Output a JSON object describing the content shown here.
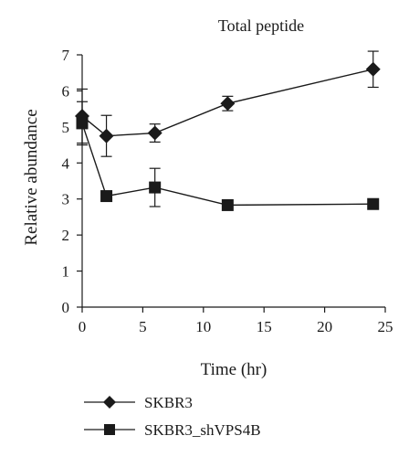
{
  "chart_data": {
    "type": "line",
    "title": "Total peptide",
    "xlabel": "Time (hr)",
    "ylabel": "Relative abundance",
    "xlim": [
      0,
      25
    ],
    "ylim": [
      0,
      7
    ],
    "xticks": [
      "0",
      "5",
      "10",
      "15",
      "20",
      "25"
    ],
    "yticks": [
      "0",
      "1",
      "2",
      "3",
      "4",
      "5",
      "6",
      "7"
    ],
    "grid": false,
    "legend_position": "bottom-left",
    "series": [
      {
        "name": "SKBR3",
        "marker": "diamond",
        "x": [
          0,
          2,
          6,
          12,
          24
        ],
        "y": [
          5.3,
          4.75,
          4.83,
          5.65,
          6.6
        ],
        "err": [
          0.75,
          0.57,
          0.25,
          0.2,
          0.5
        ]
      },
      {
        "name": "SKBR3_shVPS4B",
        "marker": "square",
        "x": [
          0,
          2,
          6,
          12,
          24
        ],
        "y": [
          5.1,
          3.08,
          3.32,
          2.83,
          2.86
        ],
        "err": [
          0.6,
          0.05,
          0.53,
          0.05,
          0.05
        ]
      }
    ],
    "colors": {
      "line": "#1a1a1a"
    }
  }
}
